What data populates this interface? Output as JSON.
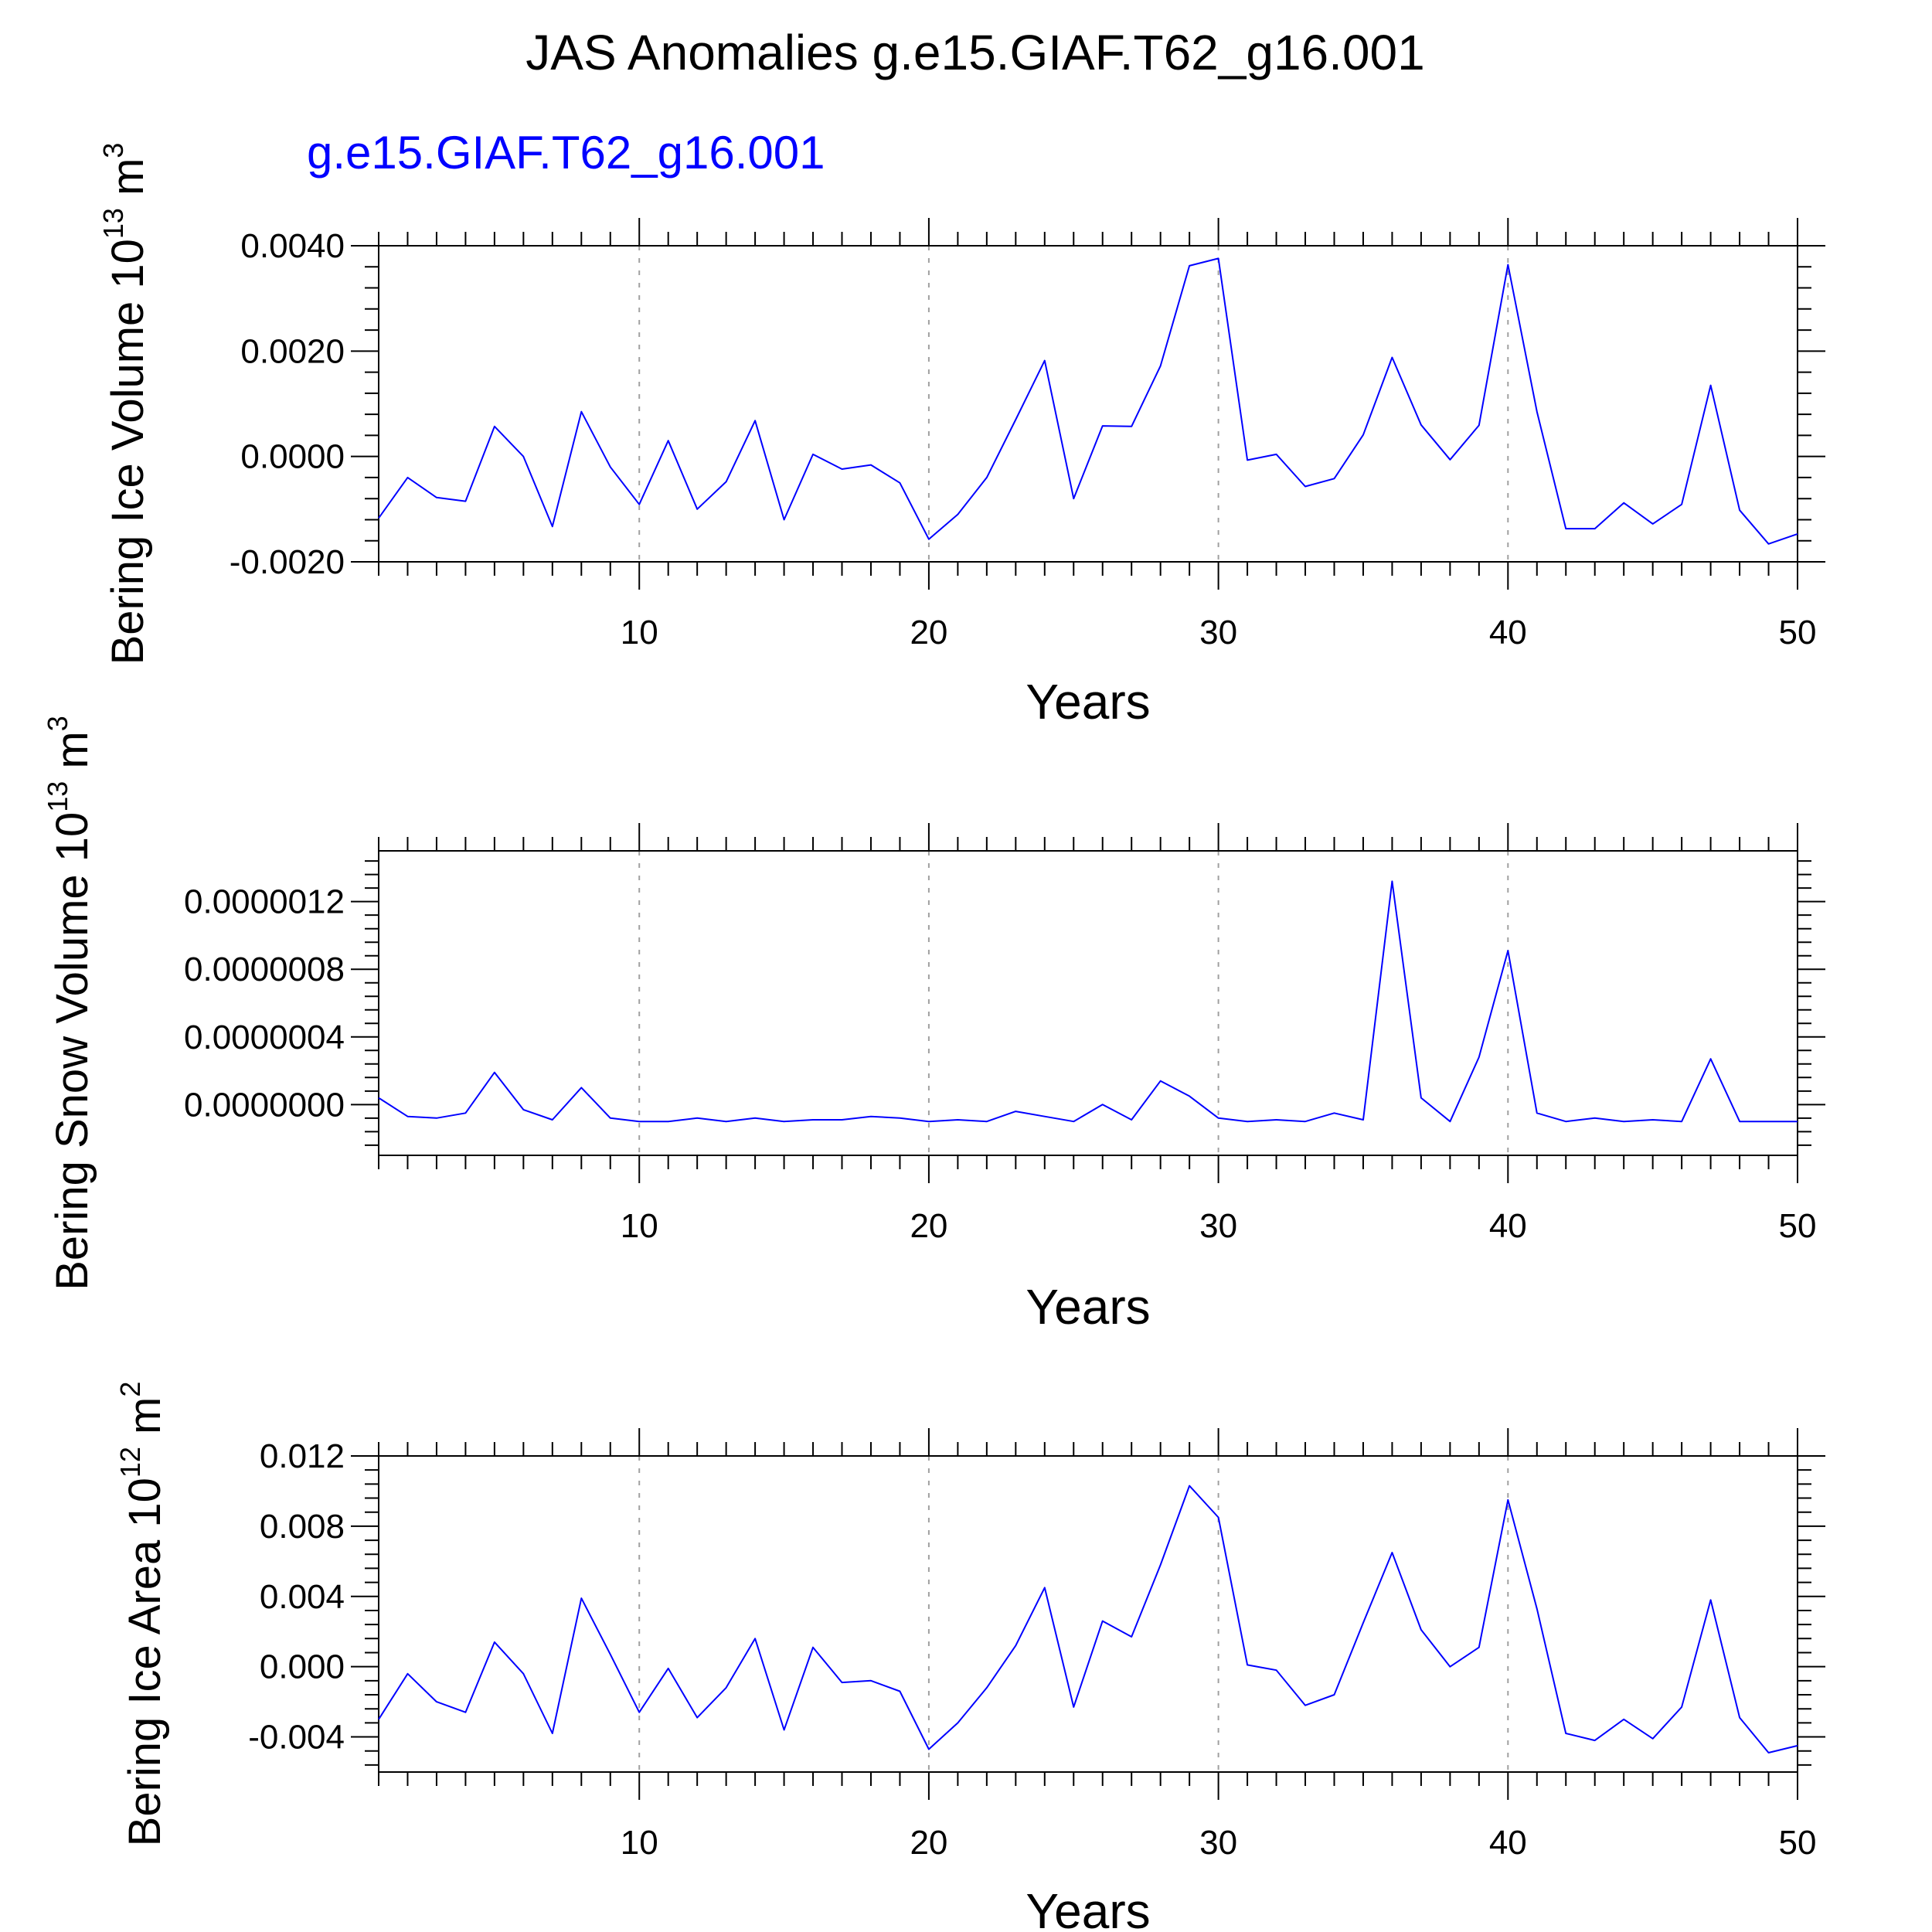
{
  "title": "JAS Anomalies g.e15.GIAF.T62_g16.001",
  "legend_label": "g.e15.GIAF.T62_g16.001",
  "colors": {
    "series": "#0000ff",
    "legend": "#0000ff",
    "grid": "#a0a0a0",
    "axis": "#000000"
  },
  "chart_data": [
    {
      "type": "line",
      "ylabel_main": "Bering Ice Volume 10",
      "ylabel_exp": "13",
      "ylabel_unit": " m",
      "ylabel_unit_exp": "3",
      "xlabel": "Years",
      "xlim": [
        1,
        50
      ],
      "ylim": [
        -0.002,
        0.004
      ],
      "yticks": [
        -0.002,
        0.0,
        0.002,
        0.004
      ],
      "ytick_labels": [
        "-0.0020",
        "0.0000",
        "0.0020",
        "0.0040"
      ],
      "xticks": [
        10,
        20,
        30,
        40,
        50
      ],
      "xtick_labels": [
        "10",
        "20",
        "30",
        "40",
        "50"
      ],
      "series": [
        {
          "name": "g.e15.GIAF.T62_g16.001",
          "x": [
            1,
            2,
            3,
            4,
            5,
            6,
            7,
            8,
            9,
            10,
            11,
            12,
            13,
            14,
            15,
            16,
            17,
            18,
            19,
            20,
            21,
            22,
            23,
            24,
            25,
            26,
            27,
            28,
            29,
            30,
            31,
            32,
            33,
            34,
            35,
            36,
            37,
            38,
            39,
            40,
            41,
            42,
            43,
            44,
            45,
            46,
            47,
            48,
            49,
            50
          ],
          "values": [
            -0.00117,
            -0.0004,
            -0.00078,
            -0.00085,
            0.00057,
            0.0,
            -0.00133,
            0.00085,
            -0.0002,
            -0.00091,
            0.0003,
            -0.001,
            -0.00048,
            0.00068,
            -0.0012,
            4e-05,
            -0.00024,
            -0.00016,
            -0.0005,
            -0.00157,
            -0.0011,
            -0.0004,
            0.0007,
            0.00182,
            -0.0008,
            0.00058,
            0.00057,
            0.00172,
            0.00362,
            0.00376,
            -7e-05,
            4e-05,
            -0.00057,
            -0.00042,
            0.00041,
            0.00188,
            0.0006,
            -6e-05,
            0.00059,
            0.00364,
            0.00085,
            -0.00137,
            -0.00137,
            -0.00088,
            -0.00128,
            -0.00091,
            0.00135,
            -0.00102,
            -0.00166,
            -0.00147
          ]
        }
      ]
    },
    {
      "type": "line",
      "ylabel_main": "Bering Snow Volume 10",
      "ylabel_exp": "13",
      "ylabel_unit": " m",
      "ylabel_unit_exp": "3",
      "xlabel": "Years",
      "xlim": [
        1,
        50
      ],
      "ylim": [
        -3e-07,
        1.5e-06
      ],
      "yticks": [
        0.0,
        4e-07,
        8e-07,
        1.2e-06
      ],
      "ytick_labels": [
        "0.0000000",
        "0.0000004",
        "0.0000008",
        "0.0000012"
      ],
      "xticks": [
        10,
        20,
        30,
        40,
        50
      ],
      "xtick_labels": [
        "10",
        "20",
        "30",
        "40",
        "50"
      ],
      "series": [
        {
          "name": "g.e15.GIAF.T62_g16.001",
          "x": [
            1,
            2,
            3,
            4,
            5,
            6,
            7,
            8,
            9,
            10,
            11,
            12,
            13,
            14,
            15,
            16,
            17,
            18,
            19,
            20,
            21,
            22,
            23,
            24,
            25,
            26,
            27,
            28,
            29,
            30,
            31,
            32,
            33,
            34,
            35,
            36,
            37,
            38,
            39,
            40,
            41,
            42,
            43,
            44,
            45,
            46,
            47,
            48,
            49,
            50
          ],
          "values": [
            4e-08,
            -7e-08,
            -8e-08,
            -5e-08,
            1.9e-07,
            -3e-08,
            -9e-08,
            1e-07,
            -8e-08,
            -1e-07,
            -1e-07,
            -8e-08,
            -1e-07,
            -8e-08,
            -1e-07,
            -9e-08,
            -9e-08,
            -7e-08,
            -8e-08,
            -1e-07,
            -9e-08,
            -1e-07,
            -4e-08,
            -7e-08,
            -1e-07,
            0.0,
            -9e-08,
            1.4e-07,
            5e-08,
            -8e-08,
            -1e-07,
            -9e-08,
            -1e-07,
            -5e-08,
            -9e-08,
            1.32e-06,
            4e-08,
            -1e-07,
            2.8e-07,
            9.1e-07,
            -5e-08,
            -1e-07,
            -8e-08,
            -1e-07,
            -9e-08,
            -1e-07,
            2.7e-07,
            -1e-07,
            -1e-07,
            -1e-07
          ]
        }
      ]
    },
    {
      "type": "line",
      "ylabel_main": "Bering Ice Area 10",
      "ylabel_exp": "12",
      "ylabel_unit": " m",
      "ylabel_unit_exp": "2",
      "xlabel": "Years",
      "xlim": [
        1,
        50
      ],
      "ylim": [
        -0.006,
        0.012
      ],
      "yticks": [
        -0.004,
        0.0,
        0.004,
        0.008,
        0.012
      ],
      "ytick_labels": [
        "-0.004",
        "0.000",
        "0.004",
        "0.008",
        "0.012"
      ],
      "xticks": [
        10,
        20,
        30,
        40,
        50
      ],
      "xtick_labels": [
        "10",
        "20",
        "30",
        "40",
        "50"
      ],
      "series": [
        {
          "name": "g.e15.GIAF.T62_g16.001",
          "x": [
            1,
            2,
            3,
            4,
            5,
            6,
            7,
            8,
            9,
            10,
            11,
            12,
            13,
            14,
            15,
            16,
            17,
            18,
            19,
            20,
            21,
            22,
            23,
            24,
            25,
            26,
            27,
            28,
            29,
            30,
            31,
            32,
            33,
            34,
            35,
            36,
            37,
            38,
            39,
            40,
            41,
            42,
            43,
            44,
            45,
            46,
            47,
            48,
            49,
            50
          ],
          "values": [
            -0.003,
            -0.0004,
            -0.002,
            -0.0026,
            0.0014,
            -0.0004,
            -0.0038,
            0.0039,
            0.0007,
            -0.0026,
            -0.0001,
            -0.0029,
            -0.0012,
            0.0016,
            -0.0036,
            0.0011,
            -0.0009,
            -0.0008,
            -0.0014,
            -0.0047,
            -0.0032,
            -0.0012,
            0.0012,
            0.0045,
            -0.0023,
            0.0026,
            0.0017,
            0.0058,
            0.0103,
            0.0085,
            0.0001,
            -0.0002,
            -0.0022,
            -0.0016,
            0.0025,
            0.0065,
            0.0021,
            0.0,
            0.0011,
            0.0095,
            0.0033,
            -0.0038,
            -0.0042,
            -0.003,
            -0.0041,
            -0.0023,
            0.0038,
            -0.0029,
            -0.0049,
            -0.0045
          ]
        }
      ]
    }
  ]
}
